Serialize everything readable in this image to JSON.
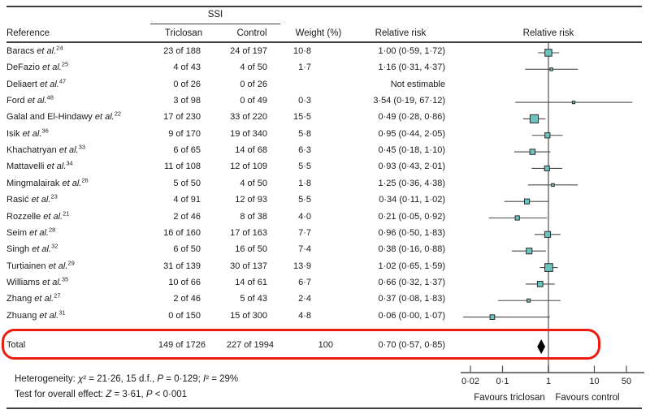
{
  "header": {
    "group_label": "SSI",
    "reference": "Reference",
    "triclosan": "Triclosan",
    "control": "Control",
    "weight": "Weight (%)",
    "relative_risk": "Relative risk",
    "plot_relative_risk": "Relative risk"
  },
  "chart_data": {
    "type": "forest",
    "outcome": "SSI",
    "effect_measure": "Relative risk",
    "x_axis": {
      "scale": "log",
      "ticks": [
        0.02,
        0.1,
        1,
        10,
        50
      ],
      "tick_labels": [
        "0·02",
        "0·1",
        "1",
        "10",
        "50"
      ],
      "reference_line": 1,
      "left_label": "Favours triclosan",
      "right_label": "Favours control"
    },
    "studies": [
      {
        "name": "Baracs",
        "sup": "24",
        "triclosan": "23 of 188",
        "control": "24 of 197",
        "weight_text": "10·8",
        "weight": 10.8,
        "rr_text": "1·00 (0·59, 1·72)",
        "rr": 1.0,
        "ci_low": 0.59,
        "ci_high": 1.72
      },
      {
        "name": "DeFazio",
        "sup": "25",
        "triclosan": "4 of 43",
        "control": "4 of 50",
        "weight_text": "1·7",
        "weight": 1.7,
        "rr_text": "1·16 (0·31, 4·37)",
        "rr": 1.16,
        "ci_low": 0.31,
        "ci_high": 4.37
      },
      {
        "name": "Deliaert",
        "sup": "47",
        "triclosan": "0 of 26",
        "control": "0 of 26",
        "weight_text": "",
        "weight": null,
        "rr_text": "Not estimable",
        "rr": null,
        "ci_low": null,
        "ci_high": null
      },
      {
        "name": "Ford",
        "sup": "48",
        "triclosan": "3 of 98",
        "control": "0 of 49",
        "weight_text": "0·3",
        "weight": 0.3,
        "rr_text": "3·54 (0·19, 67·12)",
        "rr": 3.54,
        "ci_low": 0.19,
        "ci_high": 67.12
      },
      {
        "name": "Galal and El-Hindawy",
        "sup": "22",
        "triclosan": "17 of 230",
        "control": "33 of 220",
        "weight_text": "15·5",
        "weight": 15.5,
        "rr_text": "0·49 (0·28, 0·86)",
        "rr": 0.49,
        "ci_low": 0.28,
        "ci_high": 0.86
      },
      {
        "name": "Isik",
        "sup": "36",
        "triclosan": "9 of 170",
        "control": "19 of 340",
        "weight_text": "5·8",
        "weight": 5.8,
        "rr_text": "0·95 (0·44, 2·05)",
        "rr": 0.95,
        "ci_low": 0.44,
        "ci_high": 2.05
      },
      {
        "name": "Khachatryan",
        "sup": "33",
        "triclosan": "6 of 65",
        "control": "14 of 68",
        "weight_text": "6·3",
        "weight": 6.3,
        "rr_text": "0·45 (0·18, 1·10)",
        "rr": 0.45,
        "ci_low": 0.18,
        "ci_high": 1.1
      },
      {
        "name": "Mattavelli",
        "sup": "34",
        "triclosan": "11 of 108",
        "control": "12 of 109",
        "weight_text": "5·5",
        "weight": 5.5,
        "rr_text": "0·93 (0·43, 2·01)",
        "rr": 0.93,
        "ci_low": 0.43,
        "ci_high": 2.01
      },
      {
        "name": "Mingmalairak",
        "sup": "26",
        "triclosan": "5 of 50",
        "control": "4 of 50",
        "weight_text": "1·8",
        "weight": 1.8,
        "rr_text": "1·25 (0·36, 4·38)",
        "rr": 1.25,
        "ci_low": 0.36,
        "ci_high": 4.38
      },
      {
        "name": "Rasić",
        "sup": "23",
        "triclosan": "4 of 91",
        "control": "12 of 93",
        "weight_text": "5·5",
        "weight": 5.5,
        "rr_text": "0·34 (0·11, 1·02)",
        "rr": 0.34,
        "ci_low": 0.11,
        "ci_high": 1.02
      },
      {
        "name": "Rozzelle",
        "sup": "21",
        "triclosan": "2 of 46",
        "control": "8 of 38",
        "weight_text": "4·0",
        "weight": 4.0,
        "rr_text": "0·21 (0·05, 0·92)",
        "rr": 0.21,
        "ci_low": 0.05,
        "ci_high": 0.92
      },
      {
        "name": "Seim",
        "sup": "28",
        "triclosan": "16 of 160",
        "control": "17 of 163",
        "weight_text": "7·7",
        "weight": 7.7,
        "rr_text": "0·96 (0·50, 1·83)",
        "rr": 0.96,
        "ci_low": 0.5,
        "ci_high": 1.83
      },
      {
        "name": "Singh",
        "sup": "32",
        "triclosan": "6 of 50",
        "control": "16 of 50",
        "weight_text": "7·4",
        "weight": 7.4,
        "rr_text": "0·38 (0·16, 0·88)",
        "rr": 0.38,
        "ci_low": 0.16,
        "ci_high": 0.88
      },
      {
        "name": "Turtiainen",
        "sup": "29",
        "triclosan": "31 of 139",
        "control": "30 of 137",
        "weight_text": "13·9",
        "weight": 13.9,
        "rr_text": "1·02 (0·65, 1·59)",
        "rr": 1.02,
        "ci_low": 0.65,
        "ci_high": 1.59
      },
      {
        "name": "Williams",
        "sup": "35",
        "triclosan": "10 of 66",
        "control": "14 of 61",
        "weight_text": "6·7",
        "weight": 6.7,
        "rr_text": "0·66 (0·32, 1·37)",
        "rr": 0.66,
        "ci_low": 0.32,
        "ci_high": 1.37
      },
      {
        "name": "Zhang",
        "sup": "27",
        "triclosan": "2 of 46",
        "control": "5 of 43",
        "weight_text": "2·4",
        "weight": 2.4,
        "rr_text": "0·37 (0·08, 1·83)",
        "rr": 0.37,
        "ci_low": 0.08,
        "ci_high": 1.83
      },
      {
        "name": "Zhuang",
        "sup": "31",
        "triclosan": "0 of 150",
        "control": "15 of 300",
        "weight_text": "4·8",
        "weight": 4.8,
        "rr_text": "0·06 (0·00, 1·07)",
        "rr": 0.06,
        "ci_low": 0.0,
        "ci_high": 1.07
      }
    ],
    "total": {
      "label": "Total",
      "triclosan": "149 of 1726",
      "control": "227 of 1994",
      "weight_text": "100",
      "weight": 100,
      "rr_text": "0·70 (0·57, 0·85)",
      "rr": 0.7,
      "ci_low": 0.57,
      "ci_high": 0.85
    }
  },
  "footer": {
    "heterogeneity": [
      {
        "t": "Heterogeneity: "
      },
      {
        "t": "χ",
        "i": 1
      },
      {
        "t": "² = 21·26, 15 d.f., "
      },
      {
        "t": "P",
        "i": 1
      },
      {
        "t": " = 0·129; "
      },
      {
        "t": "I",
        "i": 1
      },
      {
        "t": "² = 29%"
      }
    ],
    "overall_effect": [
      {
        "t": "Test for overall effect: "
      },
      {
        "t": "Z",
        "i": 1
      },
      {
        "t": " = 3·61, "
      },
      {
        "t": "P",
        "i": 1
      },
      {
        "t": " < 0·001"
      }
    ]
  },
  "colors": {
    "marker_fill": "#68c5bf",
    "marker_border": "#2b2b2b",
    "ci_line": "#4a4a4a",
    "reference_line": "#8a8a8a",
    "axis": "#4a4a4a",
    "diamond": "#000000",
    "highlight_box": "#ec1c12",
    "rule": "#3f3f3f",
    "text": "#1a1a1a"
  }
}
